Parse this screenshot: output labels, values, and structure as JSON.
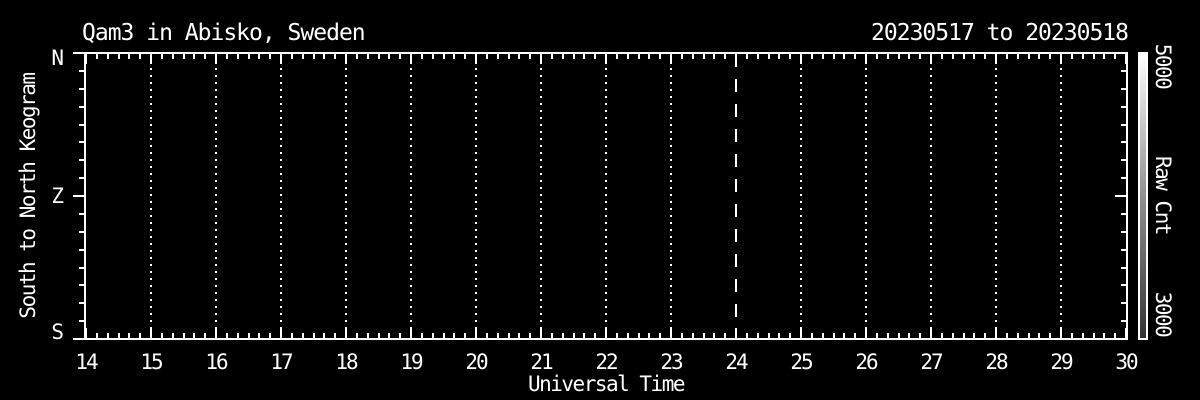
{
  "chart_data": {
    "type": "heatmap",
    "title": "Qam3 in Abisko, Sweden",
    "date_range": "20230517 to 20230518",
    "xlabel": "Universal Time",
    "ylabel": "South to North Keogram",
    "xlim": [
      14,
      30
    ],
    "x_ticks": [
      14,
      15,
      16,
      17,
      18,
      19,
      20,
      21,
      22,
      23,
      24,
      25,
      26,
      27,
      28,
      29,
      30
    ],
    "x_minor_divisions_per_hour": 6,
    "y_tick_labels": [
      "N",
      "Z",
      "S"
    ],
    "y_minor_divisions": 16,
    "grid_style": "dotted-vertical-per-hour",
    "midnight_line_hour": 24,
    "series": [],
    "plot_area_empty": true,
    "colorbar": {
      "title": "Raw Cnt",
      "max_label": "5000",
      "min_label": "3000",
      "top_color": "#ffffff",
      "bottom_color": "#333333"
    }
  },
  "colors": {
    "background": "#000000",
    "foreground": "#ffffff"
  }
}
